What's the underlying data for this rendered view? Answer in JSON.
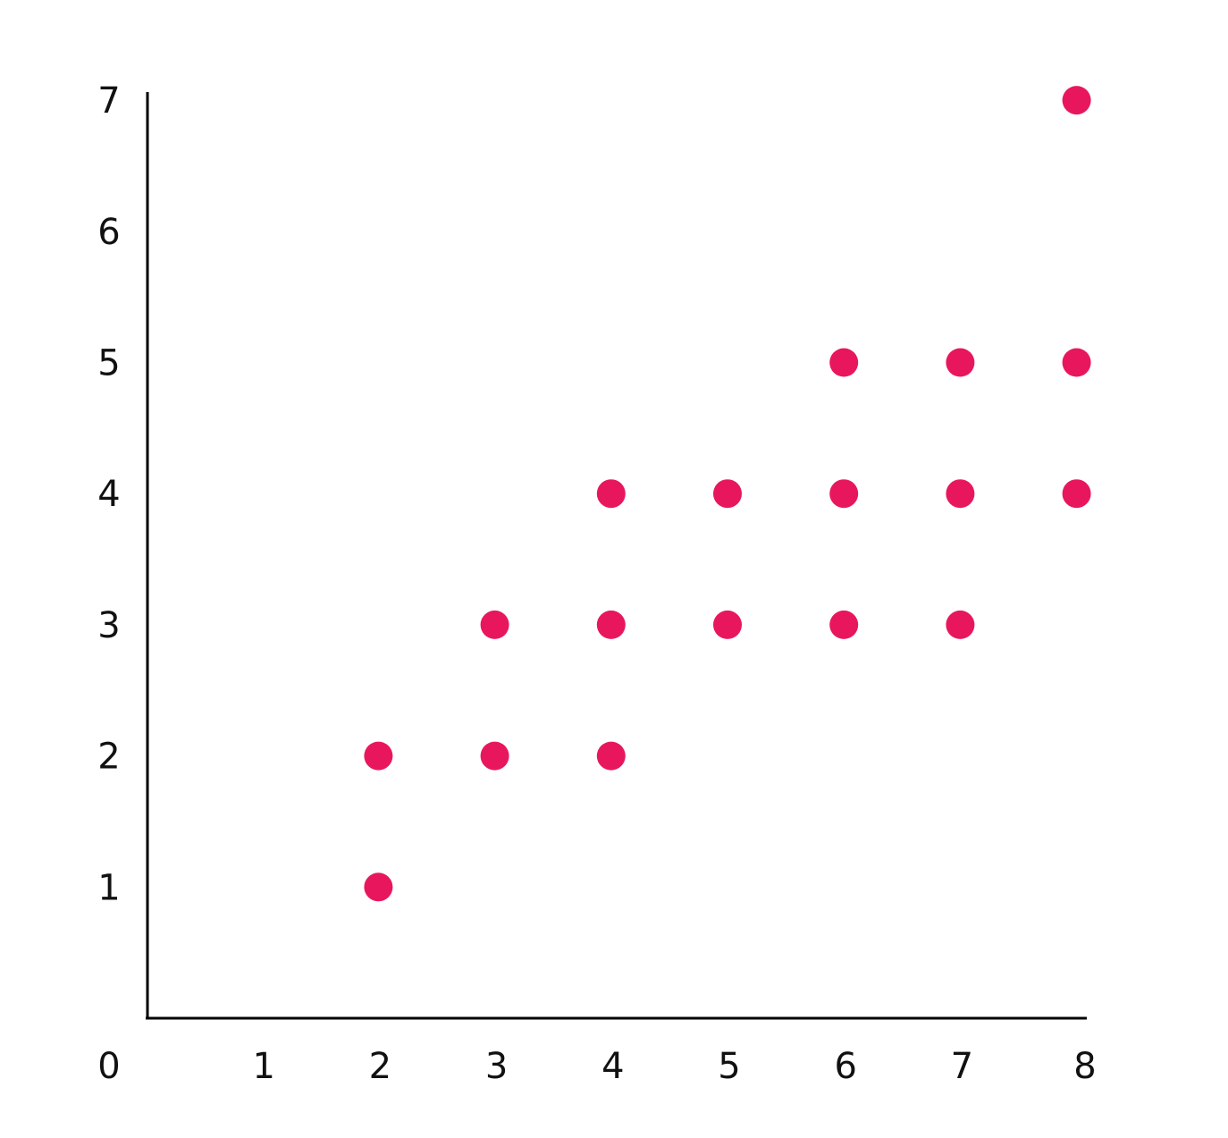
{
  "chart_data": {
    "type": "scatter",
    "title": "",
    "xlabel": "",
    "ylabel": "",
    "xlim": [
      0,
      8
    ],
    "ylim": [
      0,
      7
    ],
    "x_ticks": [
      0,
      1,
      2,
      3,
      4,
      5,
      6,
      7,
      8
    ],
    "y_ticks": [
      1,
      2,
      3,
      4,
      5,
      6,
      7
    ],
    "grid": false,
    "legend": "none",
    "series": [
      {
        "color": "#e8175d",
        "points": [
          [
            2,
            1
          ],
          [
            2,
            2
          ],
          [
            3,
            2
          ],
          [
            3,
            3
          ],
          [
            4,
            2
          ],
          [
            4,
            3
          ],
          [
            4,
            4
          ],
          [
            5,
            3
          ],
          [
            5,
            4
          ],
          [
            6,
            3
          ],
          [
            6,
            4
          ],
          [
            6,
            5
          ],
          [
            7,
            3
          ],
          [
            7,
            4
          ],
          [
            7,
            5
          ],
          [
            8,
            4
          ],
          [
            8,
            5
          ],
          [
            8,
            7
          ]
        ]
      }
    ]
  }
}
